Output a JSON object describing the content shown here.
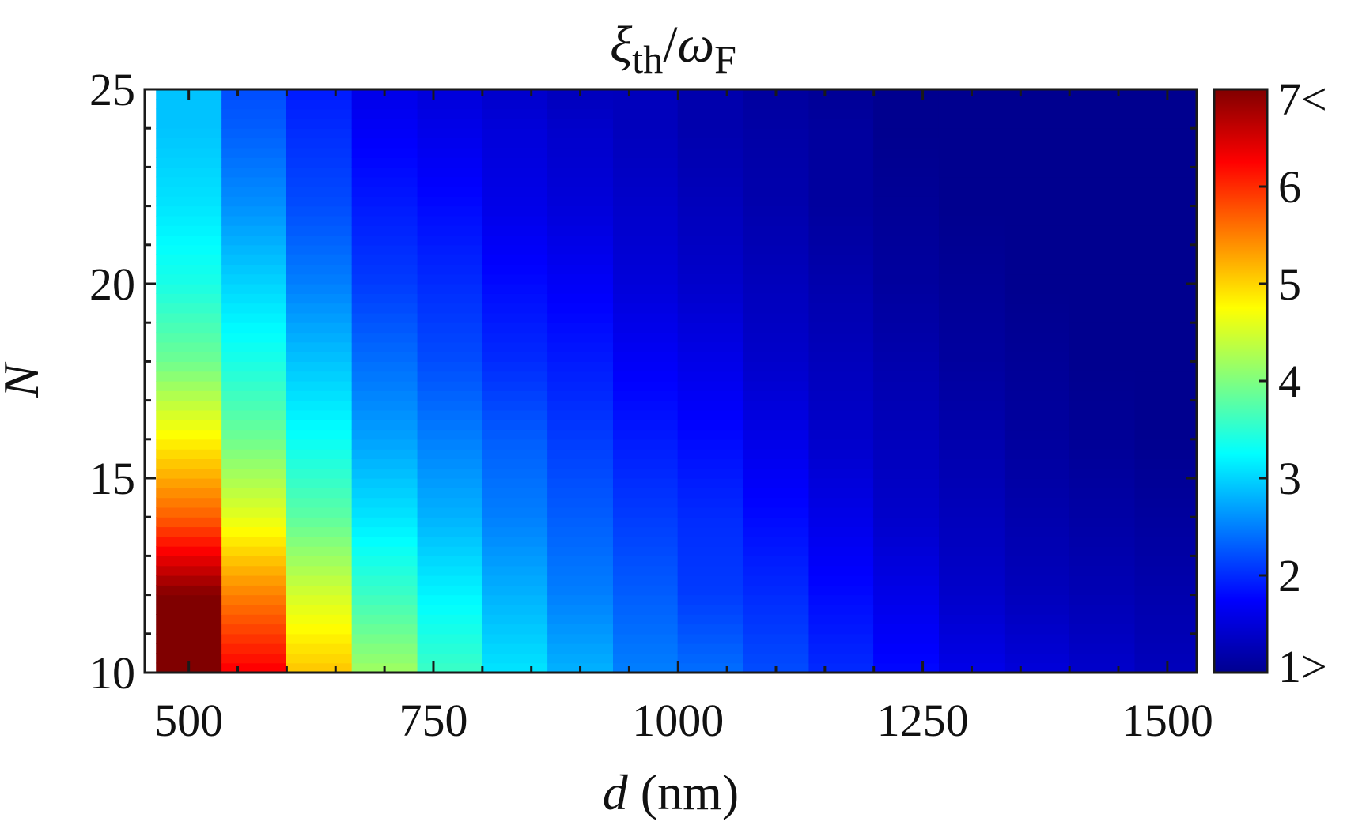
{
  "chart_data": {
    "type": "heatmap",
    "title": {
      "main1": "ξ",
      "sub1": "th",
      "slash": "/",
      "main2": "ω",
      "sub2": "F"
    },
    "xlabel": {
      "var": "d",
      "unit": " (nm)"
    },
    "ylabel": "N",
    "xlim": [
      455,
      1530
    ],
    "ylim": [
      10,
      25
    ],
    "xticks": [
      500,
      750,
      1000,
      1250,
      1500
    ],
    "yticks": [
      10,
      15,
      20,
      25
    ],
    "x_columns": [
      500,
      567,
      633,
      700,
      767,
      833,
      900,
      967,
      1033,
      1100,
      1167,
      1233,
      1300,
      1367,
      1433,
      1500
    ],
    "y_rows": [
      10,
      12,
      14,
      16,
      18,
      20,
      22,
      24,
      25
    ],
    "values_description_rows": "each row of z corresponds to a column d value; entries follow y_rows",
    "z": [
      [
        7.0,
        7.0,
        5.7,
        4.8,
        3.9,
        3.4,
        3.1,
        2.9,
        2.9
      ],
      [
        6.3,
        5.5,
        4.6,
        3.9,
        3.4,
        3.0,
        2.6,
        2.3,
        2.2
      ],
      [
        5.1,
        4.5,
        3.8,
        3.3,
        2.9,
        2.5,
        2.2,
        2.0,
        1.9
      ],
      [
        4.2,
        3.6,
        3.1,
        2.7,
        2.4,
        2.1,
        1.9,
        1.7,
        1.6
      ],
      [
        3.6,
        3.2,
        2.8,
        2.5,
        2.2,
        2.0,
        1.8,
        1.6,
        1.5
      ],
      [
        3.1,
        2.8,
        2.5,
        2.3,
        2.0,
        1.8,
        1.6,
        1.5,
        1.4
      ],
      [
        2.8,
        2.5,
        2.3,
        2.1,
        1.9,
        1.7,
        1.5,
        1.4,
        1.3
      ],
      [
        2.5,
        2.3,
        2.1,
        1.9,
        1.7,
        1.5,
        1.4,
        1.3,
        1.3
      ],
      [
        2.4,
        2.1,
        2.0,
        1.8,
        1.6,
        1.4,
        1.3,
        1.2,
        1.2
      ],
      [
        2.2,
        2.0,
        1.8,
        1.6,
        1.4,
        1.3,
        1.2,
        1.15,
        1.1
      ],
      [
        2.0,
        1.8,
        1.6,
        1.4,
        1.3,
        1.2,
        1.1,
        1.1,
        1.05
      ],
      [
        1.8,
        1.6,
        1.4,
        1.3,
        1.2,
        1.1,
        1.05,
        1.0,
        1.0
      ],
      [
        1.6,
        1.4,
        1.3,
        1.2,
        1.1,
        1.05,
        1.0,
        1.0,
        1.0
      ],
      [
        1.5,
        1.3,
        1.2,
        1.1,
        1.05,
        1.0,
        1.0,
        1.0,
        1.0
      ],
      [
        1.4,
        1.25,
        1.15,
        1.05,
        1.0,
        1.0,
        1.0,
        1.0,
        1.0
      ],
      [
        1.3,
        1.2,
        1.1,
        1.0,
        1.0,
        1.0,
        1.0,
        1.0,
        1.0
      ]
    ],
    "colorbar": {
      "range": [
        1,
        7
      ],
      "colormap": "jet",
      "ticks": [
        1,
        2,
        3,
        4,
        5,
        6,
        7
      ],
      "tick_labels": [
        "1>",
        "2",
        "3",
        "4",
        "5",
        "6",
        "7<"
      ]
    },
    "grid": false,
    "legend": "none"
  }
}
